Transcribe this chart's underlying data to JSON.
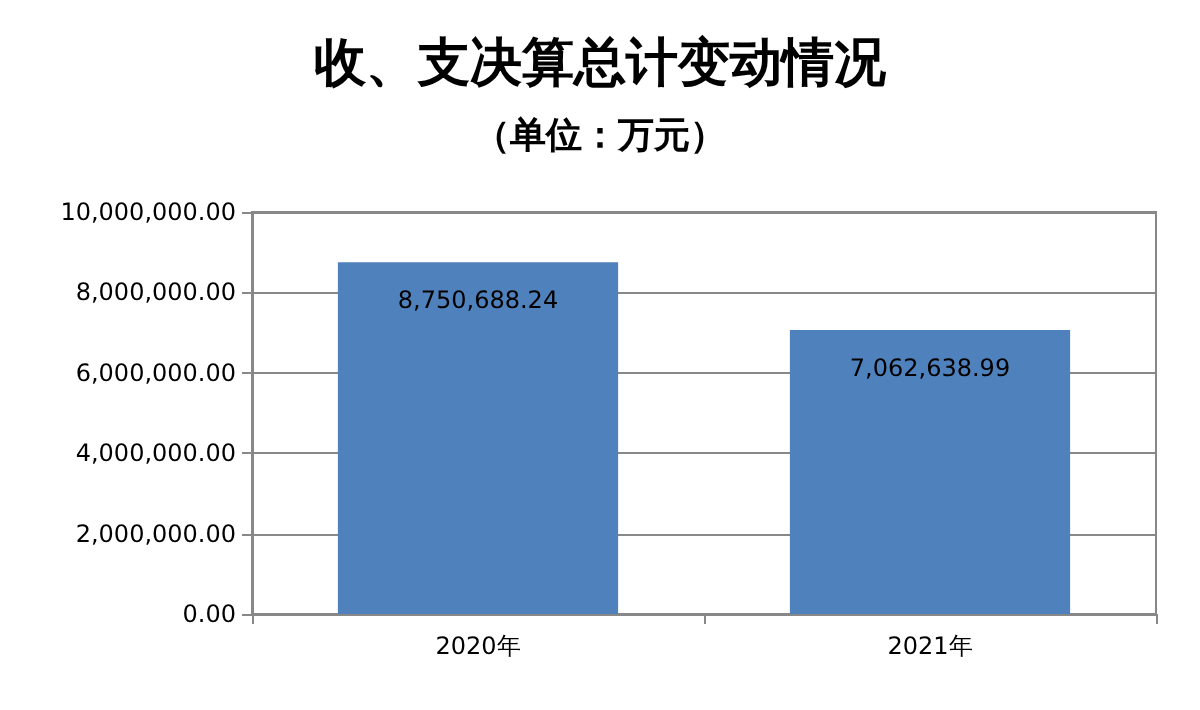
{
  "chart_data": {
    "type": "bar",
    "title": "收、支决算总计变动情况",
    "subtitle": "（单位：万元）",
    "categories": [
      "2020年",
      "2021年"
    ],
    "series": [
      {
        "color": "#4f81bd",
        "values": [
          8750688.24,
          7062638.99
        ],
        "value_labels": [
          "8,750,688.24",
          "7,062,638.99"
        ]
      }
    ],
    "ylim": [
      0,
      10000000
    ],
    "yticks": [
      {
        "value": 0,
        "label": "0.00"
      },
      {
        "value": 2000000,
        "label": "2,000,000.00"
      },
      {
        "value": 4000000,
        "label": "4,000,000.00"
      },
      {
        "value": 6000000,
        "label": "6,000,000.00"
      },
      {
        "value": 8000000,
        "label": "8,000,000.00"
      },
      {
        "value": 10000000,
        "label": "10,000,000.00"
      }
    ],
    "grid": "y"
  }
}
